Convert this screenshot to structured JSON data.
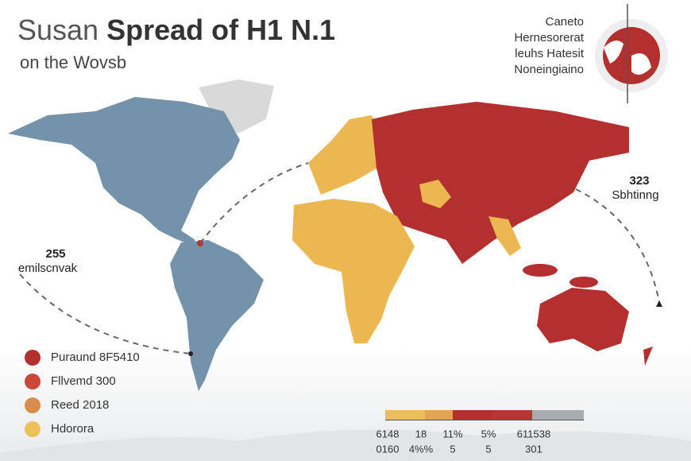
{
  "header": {
    "title_light": "Susan",
    "title_bold": "Spread of H1 N.1",
    "subtitle": "on the Wovsb"
  },
  "info_box": {
    "lines": [
      "Caneto",
      "Hernesorerat",
      "leuhs Hatesit",
      "Noneingiaino"
    ]
  },
  "annotations": [
    {
      "value": "255",
      "label": "emilscnvak"
    },
    {
      "value": "323",
      "label": "Sbhtinng"
    }
  ],
  "legend": [
    {
      "label": "Puraund 8F5410",
      "color": "#b3302e"
    },
    {
      "label": "Fllvemd 300",
      "color": "#c9483a"
    },
    {
      "label": "Reed 2018",
      "color": "#d98c4b"
    },
    {
      "label": "Hdorora",
      "color": "#ecc258"
    }
  ],
  "scale": {
    "colors": [
      "#ecbe5c",
      "#e0a54e",
      "#b3302e",
      "#b73532",
      "#a9acae"
    ],
    "row1": [
      "6148",
      "18",
      "11%",
      "5%",
      "611538"
    ],
    "row2": [
      "0160",
      "4%%",
      "5",
      "5",
      "301"
    ]
  }
}
